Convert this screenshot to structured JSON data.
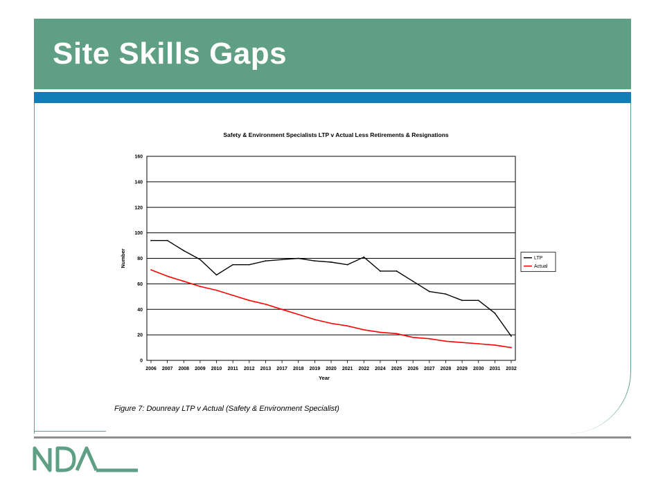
{
  "slide": {
    "title": "Site Skills Gaps",
    "caption": "Figure 7: Dounreay LTP v Actual (Safety & Environment Specialist)",
    "logo_text": "NDA"
  },
  "colors": {
    "title_bar": "#5f9f86",
    "accent_bar": "#127db5",
    "ltp_line": "#000000",
    "actual_line": "#ff0000"
  },
  "chart_data": {
    "type": "line",
    "title": "Safety & Environment Specialists LTP v Actual Less Retirements & Resignations",
    "xlabel": "Year",
    "ylabel": "Number",
    "ylim": [
      0,
      160
    ],
    "yticks": [
      0,
      20,
      40,
      60,
      80,
      100,
      120,
      140,
      160
    ],
    "grid": "horizontal",
    "legend_position": "right",
    "categories": [
      "2006",
      "2007",
      "2008",
      "2009",
      "2010",
      "2011",
      "2012",
      "2013",
      "2017",
      "2018",
      "2019",
      "2020",
      "2021",
      "2022",
      "2024",
      "2025",
      "2026",
      "2027",
      "2028",
      "2029",
      "2030",
      "2031",
      "2032"
    ],
    "series": [
      {
        "name": "LTP",
        "color": "#000000",
        "values": [
          94,
          94,
          86,
          79,
          67,
          75,
          75,
          78,
          79,
          80,
          78,
          77,
          75,
          81,
          70,
          70,
          62,
          54,
          52,
          47,
          47,
          37,
          19
        ]
      },
      {
        "name": "Actual",
        "color": "#ff0000",
        "values": [
          71,
          66,
          62,
          58,
          55,
          51,
          47,
          44,
          40,
          36,
          32,
          29,
          27,
          24,
          22,
          21,
          18,
          17,
          15,
          14,
          13,
          12,
          10
        ]
      }
    ]
  }
}
